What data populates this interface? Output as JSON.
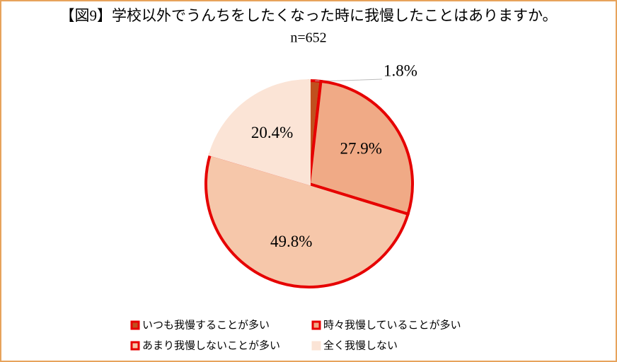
{
  "chart_data": {
    "type": "pie",
    "title": "【図9】学校以外でうんちをしたくなった時に我慢したことはありますか。",
    "subtitle": "n=652",
    "categories": [
      "いつも我慢することが多い",
      "時々我慢していることが多い",
      "あまり我慢しないことが多い",
      "全く我慢しない"
    ],
    "values": [
      1.8,
      27.9,
      49.8,
      20.4
    ],
    "value_labels": [
      "1.8%",
      "27.9%",
      "49.8%",
      "20.4%"
    ],
    "colors": [
      "#c0501e",
      "#f0aa86",
      "#f6c7aa",
      "#fbe4d6"
    ],
    "edgecolors": [
      "#e60000",
      "#e60000",
      "#e60000",
      "#fbe4d6"
    ]
  }
}
